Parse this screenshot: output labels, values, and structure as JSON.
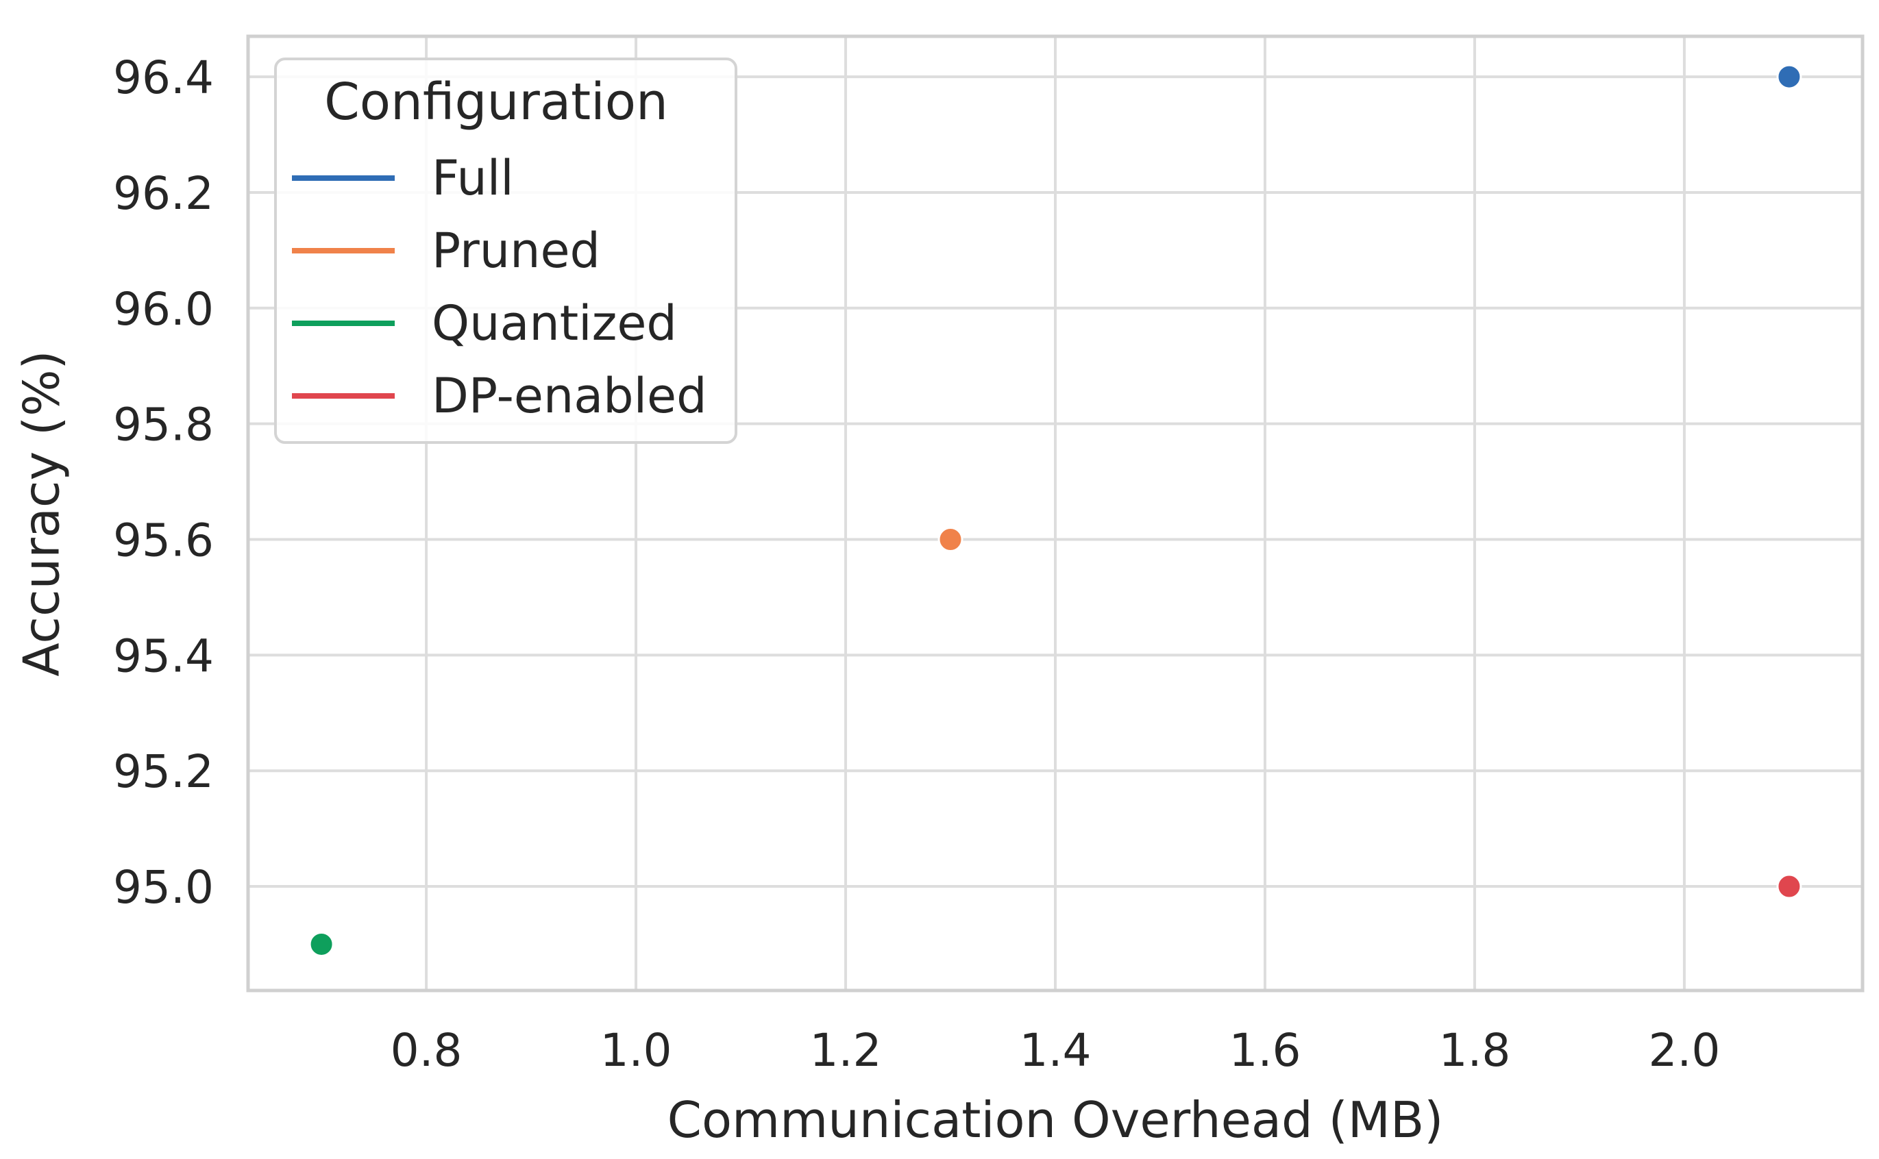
{
  "chart_data": {
    "type": "scatter",
    "title": "",
    "xlabel": "Communication Overhead (MB)",
    "ylabel": "Accuracy (%)",
    "xlim": [
      0.63,
      2.17
    ],
    "ylim": [
      94.82,
      96.47
    ],
    "xticks": [
      0.8,
      1.0,
      1.2,
      1.4,
      1.6,
      1.8,
      2.0
    ],
    "xtick_labels": [
      "0.8",
      "1.0",
      "1.2",
      "1.4",
      "1.6",
      "1.8",
      "2.0"
    ],
    "yticks": [
      95.0,
      95.2,
      95.4,
      95.6,
      95.8,
      96.0,
      96.2,
      96.4
    ],
    "ytick_labels": [
      "95.0",
      "95.2",
      "95.4",
      "95.6",
      "95.8",
      "96.0",
      "96.2",
      "96.4"
    ],
    "grid": true,
    "legend": {
      "title": "Configuration",
      "placement": "top-left"
    },
    "series": [
      {
        "name": "Full",
        "color": "#2f6db5",
        "x": [
          2.1
        ],
        "y": [
          96.4
        ]
      },
      {
        "name": "Pruned",
        "color": "#f0824a",
        "x": [
          1.3
        ],
        "y": [
          95.6
        ]
      },
      {
        "name": "Quantized",
        "color": "#0e9f5c",
        "x": [
          0.7
        ],
        "y": [
          94.9
        ]
      },
      {
        "name": "DP-enabled",
        "color": "#e0464e",
        "x": [
          2.1
        ],
        "y": [
          95.0
        ]
      }
    ]
  }
}
